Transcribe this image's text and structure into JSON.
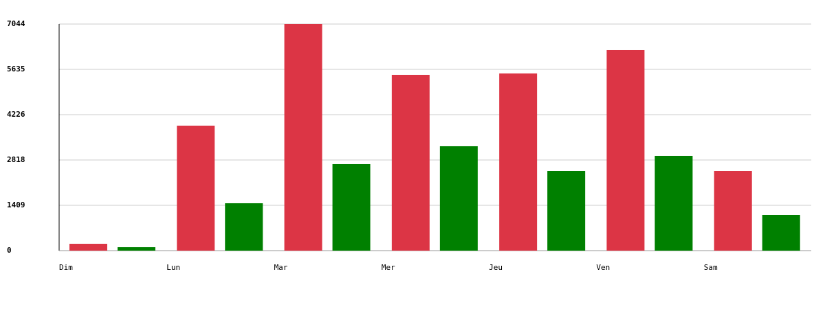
{
  "chart_data": {
    "type": "bar",
    "categories": [
      "Dim",
      "Lun",
      "Mar",
      "Mer",
      "Jeu",
      "Ven",
      "Sam"
    ],
    "series": [
      {
        "color": "#dc3545",
        "values": [
          213,
          3885,
          7044,
          5465,
          5508,
          6233,
          2476
        ]
      },
      {
        "color": "#008000",
        "values": [
          107,
          1473,
          2690,
          3245,
          2476,
          2946,
          1110
        ]
      }
    ],
    "ylim": [
      0,
      7044
    ],
    "yticks": [
      0,
      1409,
      2818,
      4226,
      5635,
      7044
    ],
    "grid": true
  }
}
